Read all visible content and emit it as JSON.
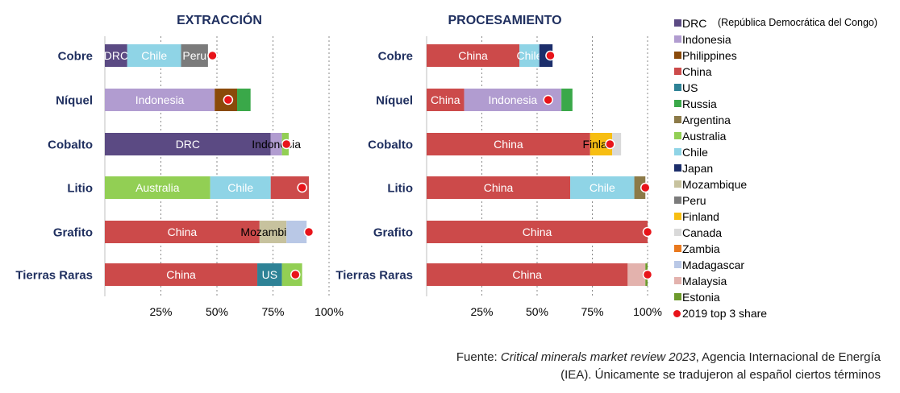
{
  "chart_data": [
    {
      "type": "bar",
      "orientation": "horizontal",
      "stacked": true,
      "title": "EXTRACCIÓN",
      "categories": [
        "Cobre",
        "Níquel",
        "Cobalto",
        "Litio",
        "Grafito",
        "Tierras Raras"
      ],
      "x_ticks": [
        "25%",
        "50%",
        "75%",
        "100%"
      ],
      "xlim": [
        0,
        100
      ],
      "grid": "vertical dashed",
      "bars": [
        {
          "category": "Cobre",
          "marker_2019_top3_share": 48,
          "segments": [
            {
              "country": "DRC",
              "value": 10,
              "label": "DRC"
            },
            {
              "country": "Chile",
              "value": 24,
              "label": "Chile"
            },
            {
              "country": "Peru",
              "value": 12,
              "label": "Peru"
            }
          ]
        },
        {
          "category": "Níquel",
          "marker_2019_top3_share": 55,
          "segments": [
            {
              "country": "Indonesia",
              "value": 49,
              "label": "Indonesia"
            },
            {
              "country": "Philippines",
              "value": 10,
              "label": ""
            },
            {
              "country": "Russia",
              "value": 6,
              "label": ""
            }
          ]
        },
        {
          "category": "Cobalto",
          "marker_2019_top3_share": 81,
          "segments": [
            {
              "country": "DRC",
              "value": 74,
              "label": "DRC"
            },
            {
              "country": "Indonesia",
              "value": 5,
              "label": "Indonesia"
            },
            {
              "country": "Australia",
              "value": 3,
              "label": ""
            }
          ]
        },
        {
          "category": "Litio",
          "marker_2019_top3_share": 88,
          "segments": [
            {
              "country": "Australia",
              "value": 47,
              "label": "Australia"
            },
            {
              "country": "Chile",
              "value": 27,
              "label": "Chile"
            },
            {
              "country": "China",
              "value": 17,
              "label": ""
            }
          ]
        },
        {
          "category": "Grafito",
          "marker_2019_top3_share": 91,
          "segments": [
            {
              "country": "China",
              "value": 69,
              "label": "China"
            },
            {
              "country": "Mozambique",
              "value": 12,
              "label": "Mozambique"
            },
            {
              "country": "Madagascar",
              "value": 9,
              "label": ""
            }
          ]
        },
        {
          "category": "Tierras Raras",
          "marker_2019_top3_share": 85,
          "segments": [
            {
              "country": "China",
              "value": 68,
              "label": "China"
            },
            {
              "country": "US",
              "value": 11,
              "label": "US"
            },
            {
              "country": "Australia",
              "value": 9,
              "label": ""
            }
          ]
        }
      ]
    },
    {
      "type": "bar",
      "orientation": "horizontal",
      "stacked": true,
      "title": "PROCESAMIENTO",
      "categories": [
        "Cobre",
        "Níquel",
        "Cobalto",
        "Litio",
        "Grafito",
        "Tierras Raras"
      ],
      "x_ticks": [
        "25%",
        "50%",
        "75%",
        "100%"
      ],
      "xlim": [
        0,
        100
      ],
      "grid": "vertical dashed",
      "bars": [
        {
          "category": "Cobre",
          "marker_2019_top3_share": 56,
          "segments": [
            {
              "country": "China",
              "value": 42,
              "label": "China"
            },
            {
              "country": "Chile",
              "value": 9,
              "label": "Chile"
            },
            {
              "country": "Japan",
              "value": 6,
              "label": ""
            }
          ]
        },
        {
          "category": "Níquel",
          "marker_2019_top3_share": 55,
          "segments": [
            {
              "country": "China",
              "value": 17,
              "label": "China"
            },
            {
              "country": "Indonesia",
              "value": 44,
              "label": "Indonesia"
            },
            {
              "country": "Russia",
              "value": 5,
              "label": ""
            }
          ]
        },
        {
          "category": "Cobalto",
          "marker_2019_top3_share": 83,
          "segments": [
            {
              "country": "China",
              "value": 74,
              "label": "China"
            },
            {
              "country": "Finland",
              "value": 10,
              "label": "Finland"
            },
            {
              "country": "Canada",
              "value": 4,
              "label": ""
            }
          ]
        },
        {
          "category": "Litio",
          "marker_2019_top3_share": 99,
          "segments": [
            {
              "country": "China",
              "value": 65,
              "label": "China"
            },
            {
              "country": "Chile",
              "value": 29,
              "label": "Chile"
            },
            {
              "country": "Argentina",
              "value": 5,
              "label": ""
            }
          ]
        },
        {
          "category": "Grafito",
          "marker_2019_top3_share": 100,
          "segments": [
            {
              "country": "China",
              "value": 100,
              "label": "China"
            }
          ]
        },
        {
          "category": "Tierras Raras",
          "marker_2019_top3_share": 100,
          "segments": [
            {
              "country": "China",
              "value": 91,
              "label": "China"
            },
            {
              "country": "Malaysia",
              "value": 8,
              "label": ""
            },
            {
              "country": "Estonia",
              "value": 1,
              "label": ""
            }
          ]
        }
      ]
    }
  ],
  "legend": {
    "items": [
      {
        "label": "DRC",
        "color": "#5b4a83"
      },
      {
        "label": "Indonesia",
        "color": "#b19cd0"
      },
      {
        "label": "Philippines",
        "color": "#8a4a0a"
      },
      {
        "label": "China",
        "color": "#cc4a4a"
      },
      {
        "label": "US",
        "color": "#2e8296"
      },
      {
        "label": "Russia",
        "color": "#3aa849"
      },
      {
        "label": "Argentina",
        "color": "#8c7a48"
      },
      {
        "label": "Australia",
        "color": "#92cf54"
      },
      {
        "label": "Chile",
        "color": "#8fd4e6"
      },
      {
        "label": "Japan",
        "color": "#1c2e6b"
      },
      {
        "label": "Mozambique",
        "color": "#c7c29e"
      },
      {
        "label": "Peru",
        "color": "#7b7b7b"
      },
      {
        "label": "Finland",
        "color": "#f7be12"
      },
      {
        "label": "Canada",
        "color": "#d9d9d9"
      },
      {
        "label": "Zambia",
        "color": "#e9791e"
      },
      {
        "label": "Madagascar",
        "color": "#b9c8e6"
      },
      {
        "label": "Malaysia",
        "color": "#e3b2ad"
      },
      {
        "label": "Estonia",
        "color": "#6d9a2c"
      },
      {
        "label": "2019 top 3 share",
        "color": "#e8141a",
        "marker": "dot"
      }
    ],
    "drc_note": "(República Democrática del Congo)"
  },
  "colors": {
    "category_label": "#1f2f5f",
    "title": "#1f2f5f",
    "marker": "#e8141a",
    "grid": "#8a8a8a"
  },
  "source": {
    "prefix": "Fuente: ",
    "italic": "Critical minerals market review 2023",
    "suffix": ", Agencia Internacional de Energía",
    "line2": "(IEA). Únicamente se tradujeron al español ciertos términos"
  }
}
